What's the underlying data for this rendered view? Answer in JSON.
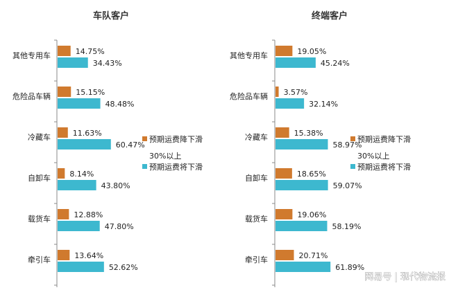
{
  "chart_data": [
    {
      "type": "bar",
      "orientation": "horizontal",
      "title": "车队客户",
      "categories": [
        "其他专用车",
        "危险品车辆",
        "冷藏车",
        "自卸车",
        "载货车",
        "牵引车"
      ],
      "series": [
        {
          "name": "预期运费降下滑",
          "color": "#D07A2E",
          "values": [
            14.75,
            15.15,
            11.63,
            8.14,
            12.88,
            13.64
          ],
          "labels": [
            "14.75%",
            "15.15%",
            "11.63%",
            "8.14%",
            "12.88%",
            "13.64%"
          ]
        },
        {
          "name": "30%以上预期运费将下滑",
          "color": "#3DB8CF",
          "values": [
            34.43,
            48.48,
            60.47,
            43.8,
            47.8,
            52.62
          ],
          "labels": [
            "34.43%",
            "48.48%",
            "60.47%",
            "43.80%",
            "47.80%",
            "52.62%"
          ]
        }
      ],
      "legend_position": "right",
      "grid": false
    },
    {
      "type": "bar",
      "orientation": "horizontal",
      "title": "终端客户",
      "categories": [
        "其他专用车",
        "危险品车辆",
        "冷藏车",
        "自卸车",
        "载货车",
        "牵引车"
      ],
      "series": [
        {
          "name": "预期运费降下滑",
          "color": "#D07A2E",
          "values": [
            19.05,
            3.57,
            15.38,
            18.65,
            19.06,
            20.71
          ],
          "labels": [
            "19.05%",
            "3.57%",
            "15.38%",
            "18.65%",
            "19.06%",
            "20.71%"
          ]
        },
        {
          "name": "30%以上预期运费将下滑",
          "color": "#3DB8CF",
          "values": [
            45.24,
            32.14,
            58.97,
            59.07,
            58.19,
            61.89
          ],
          "labels": [
            "45.24%",
            "32.14%",
            "58.97%",
            "59.07%",
            "58.19%",
            "61.89%"
          ]
        }
      ],
      "legend_position": "right",
      "grid": false
    }
  ],
  "legend_text": {
    "item1": "预期运费降下滑",
    "item2_line1": "30%以上",
    "item2_line2": "预期运费将下滑"
  },
  "watermark": "网易号 | 现代物流报"
}
